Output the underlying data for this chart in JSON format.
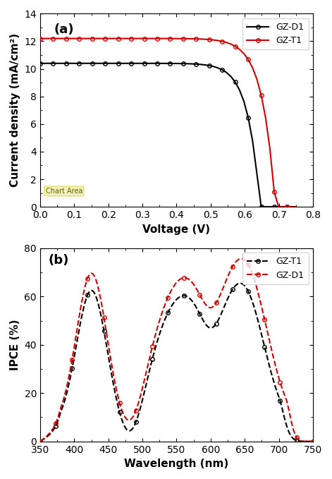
{
  "panel_a": {
    "title": "(a)",
    "xlabel": "Voltage (V)",
    "ylabel": "Current density (mA/cm²)",
    "xlim": [
      0,
      0.8
    ],
    "ylim": [
      0,
      14
    ],
    "yticks": [
      0,
      2,
      4,
      6,
      8,
      10,
      12,
      14
    ],
    "xticks": [
      0,
      0.1,
      0.2,
      0.3,
      0.4,
      0.5,
      0.6,
      0.7,
      0.8
    ],
    "gzd1_color": "#000000",
    "gzt1_color": "#cc0000",
    "chart_area_label": "Chart Area"
  },
  "panel_b": {
    "title": "(b)",
    "xlabel": "Wavelength (nm)",
    "ylabel": "IPCE (%)",
    "xlim": [
      350,
      750
    ],
    "ylim": [
      0,
      80
    ],
    "yticks": [
      0,
      20,
      40,
      60,
      80
    ],
    "xticks": [
      350,
      400,
      450,
      500,
      550,
      600,
      650,
      700,
      750
    ],
    "gzd1_color": "#cc0000",
    "gzt1_color": "#000000"
  }
}
